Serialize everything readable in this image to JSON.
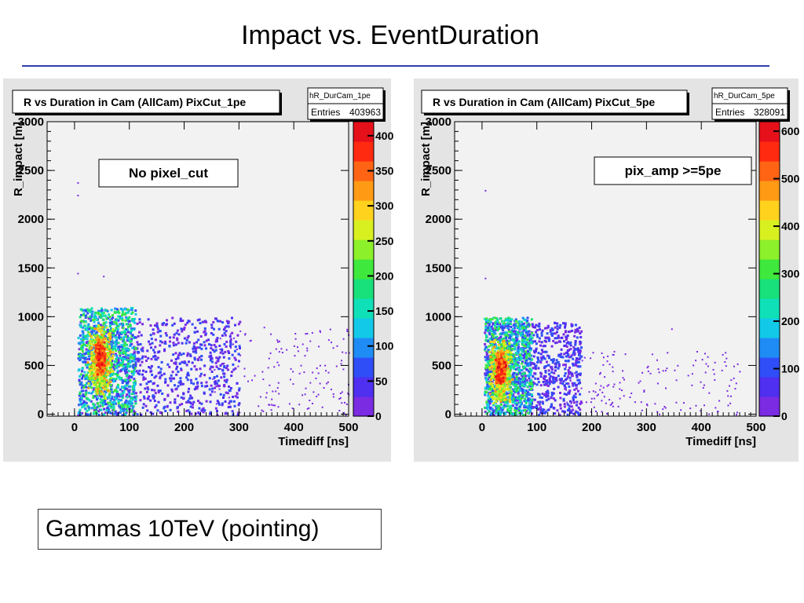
{
  "slide": {
    "title": "Impact vs. EventDuration",
    "caption": "Gammas 10TeV (pointing)"
  },
  "colors": {
    "title_rule": "#2f3fae",
    "frame": "#e4e4e4",
    "plot_bg": "#f2f2f2",
    "palette": [
      "#7b2be2",
      "#4f2ff0",
      "#2f4ef8",
      "#1f8cf5",
      "#12c9e8",
      "#10e0b8",
      "#18e07a",
      "#3fe83c",
      "#8cf02a",
      "#d8f020",
      "#ffd21e",
      "#ff9a14",
      "#ff6414",
      "#ff2a0f",
      "#e6101a"
    ]
  },
  "chart_data": [
    {
      "type": "heatmap",
      "title": "R vs Duration in Cam (AllCam) PixCut_1pe",
      "stats": {
        "name": "hR_DurCam_1pe",
        "entries_label": "Entries",
        "entries": "403963"
      },
      "annotation": "No pixel_cut",
      "xlabel": "Timediff [ns]",
      "ylabel": "R_impact [m]",
      "xlim": [
        -50,
        500
      ],
      "ylim": [
        -20,
        3000
      ],
      "xticks": [
        0,
        100,
        200,
        300,
        400,
        500
      ],
      "yticks": [
        0,
        500,
        1000,
        1500,
        2000,
        2500,
        3000
      ],
      "zlim": [
        0,
        420
      ],
      "zticks": [
        0,
        50,
        100,
        150,
        200,
        250,
        300,
        350,
        400
      ],
      "zticklabels": [
        "0",
        "50",
        "100",
        "150",
        "200",
        "250",
        "300",
        "350",
        "400"
      ],
      "grid": false,
      "peak": {
        "x": 45,
        "y": 620
      },
      "regions": [
        {
          "level": "core",
          "x": [
            35,
            55
          ],
          "y": [
            400,
            800
          ]
        },
        {
          "level": "high",
          "x": [
            20,
            70
          ],
          "y": [
            150,
            950
          ]
        },
        {
          "level": "medium",
          "x": [
            5,
            110
          ],
          "y": [
            0,
            1100
          ]
        },
        {
          "level": "low",
          "x": [
            5,
            300
          ],
          "y": [
            0,
            1000
          ]
        },
        {
          "level": "sparse",
          "x": [
            250,
            500
          ],
          "y": [
            0,
            900
          ]
        }
      ],
      "outliers": [
        {
          "x": 5,
          "y": 2380
        },
        {
          "x": 5,
          "y": 2250
        },
        {
          "x": 5,
          "y": 1450
        },
        {
          "x": 52,
          "y": 1420
        }
      ]
    },
    {
      "type": "heatmap",
      "title": "R vs Duration in Cam (AllCam) PixCut_5pe",
      "stats": {
        "name": "hR_DurCam_5pe",
        "entries_label": "Entries",
        "entries": "328091"
      },
      "annotation": "pix_amp >=5pe",
      "xlabel": "Timediff [ns]",
      "ylabel": "R_impact [m]",
      "xlim": [
        -50,
        500
      ],
      "ylim": [
        -20,
        3000
      ],
      "xticks": [
        0,
        100,
        200,
        300,
        400,
        500
      ],
      "yticks": [
        0,
        500,
        1000,
        1500,
        2000,
        2500,
        3000
      ],
      "zlim": [
        0,
        620
      ],
      "zticks": [
        0,
        100,
        200,
        300,
        400,
        500,
        600
      ],
      "zticklabels": [
        "0",
        "100",
        "200",
        "300",
        "400",
        "500",
        "600"
      ],
      "grid": false,
      "peak": {
        "x": 30,
        "y": 480
      },
      "regions": [
        {
          "level": "core",
          "x": [
            22,
            42
          ],
          "y": [
            300,
            650
          ]
        },
        {
          "level": "high",
          "x": [
            10,
            55
          ],
          "y": [
            100,
            800
          ]
        },
        {
          "level": "medium",
          "x": [
            3,
            90
          ],
          "y": [
            0,
            1000
          ]
        },
        {
          "level": "low",
          "x": [
            3,
            180
          ],
          "y": [
            0,
            950
          ]
        },
        {
          "level": "sparse",
          "x": [
            150,
            470
          ],
          "y": [
            0,
            650
          ]
        }
      ],
      "outliers": [
        {
          "x": 5,
          "y": 2300
        },
        {
          "x": 5,
          "y": 1400
        },
        {
          "x": 345,
          "y": 880
        },
        {
          "x": 465,
          "y": 520
        }
      ]
    }
  ]
}
